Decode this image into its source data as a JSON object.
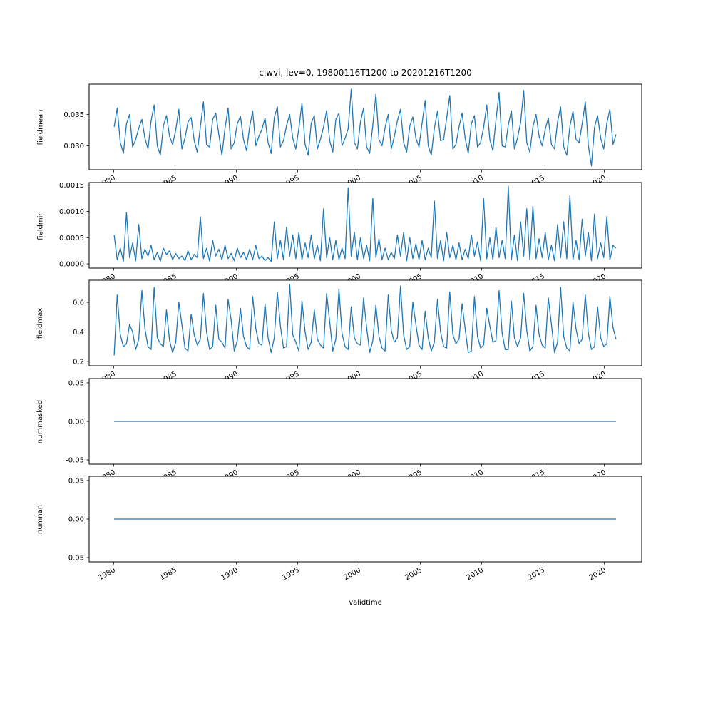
{
  "title": "clwvi, lev=0, 19800116T1200 to 20201216T1200",
  "xlabel": "validtime",
  "line_color": "#1f77b4",
  "xlim": [
    1978.0,
    2023.05
  ],
  "x_ticks": [
    1980,
    1985,
    1990,
    1995,
    2000,
    2005,
    2010,
    2015,
    2020
  ],
  "chart_data": [
    {
      "type": "line",
      "ylabel": "fieldmean",
      "ylim": [
        0.0262,
        0.0398
      ],
      "yticks": [
        0.03,
        0.035
      ],
      "ytick_labels": [
        "0.030",
        "0.035"
      ],
      "x_start": 1980.04,
      "x_end": 2020.96,
      "values": [
        0.033,
        0.036,
        0.0305,
        0.0288,
        0.0335,
        0.035,
        0.0298,
        0.031,
        0.0328,
        0.0342,
        0.0312,
        0.0295,
        0.034,
        0.0365,
        0.03,
        0.0285,
        0.0332,
        0.0348,
        0.0315,
        0.0302,
        0.0325,
        0.0358,
        0.0295,
        0.0312,
        0.0338,
        0.0345,
        0.0308,
        0.029,
        0.033,
        0.037,
        0.0302,
        0.0298,
        0.0342,
        0.0352,
        0.0318,
        0.0285,
        0.0328,
        0.036,
        0.0295,
        0.0305,
        0.0335,
        0.0347,
        0.031,
        0.0292,
        0.033,
        0.0355,
        0.03,
        0.0315,
        0.0326,
        0.0344,
        0.0305,
        0.0288,
        0.0345,
        0.0362,
        0.0298,
        0.0308,
        0.0332,
        0.035,
        0.0312,
        0.0295,
        0.0328,
        0.0368,
        0.0302,
        0.0285,
        0.0336,
        0.0348,
        0.0295,
        0.031,
        0.033,
        0.0356,
        0.0308,
        0.029,
        0.0342,
        0.0352,
        0.03,
        0.0312,
        0.0327,
        0.039,
        0.0305,
        0.0295,
        0.0338,
        0.036,
        0.0298,
        0.0288,
        0.0333,
        0.0382,
        0.031,
        0.03,
        0.0329,
        0.035,
        0.0295,
        0.0315,
        0.034,
        0.0358,
        0.0305,
        0.029,
        0.0331,
        0.0346,
        0.0312,
        0.0298,
        0.0336,
        0.0372,
        0.03,
        0.0285,
        0.0328,
        0.0355,
        0.0308,
        0.031,
        0.0344,
        0.038,
        0.0295,
        0.0302,
        0.033,
        0.0352,
        0.0312,
        0.0288,
        0.0335,
        0.0348,
        0.0298,
        0.0305,
        0.0329,
        0.0365,
        0.031,
        0.0292,
        0.0341,
        0.0385,
        0.03,
        0.0298,
        0.0333,
        0.0356,
        0.0295,
        0.0312,
        0.0337,
        0.0388,
        0.0305,
        0.029,
        0.033,
        0.035,
        0.0315,
        0.03,
        0.0326,
        0.0344,
        0.0302,
        0.0295,
        0.0338,
        0.0362,
        0.0298,
        0.0285,
        0.0331,
        0.0355,
        0.031,
        0.0305,
        0.0335,
        0.037,
        0.03,
        0.0268,
        0.0329,
        0.0348,
        0.0312,
        0.0295,
        0.0336,
        0.0358,
        0.0302,
        0.0318
      ]
    },
    {
      "type": "line",
      "ylabel": "fieldmin",
      "ylim": [
        -8e-05,
        0.00155
      ],
      "yticks": [
        0.0,
        0.0005,
        0.001,
        0.0015
      ],
      "ytick_labels": [
        "0.0000",
        "0.0005",
        "0.0010",
        "0.0015"
      ],
      "x_start": 1980.04,
      "x_end": 2020.96,
      "values": [
        0.00055,
        8e-05,
        0.0003,
        5e-05,
        0.00098,
        0.00012,
        0.0004,
        6e-05,
        0.00075,
        0.0001,
        0.00028,
        0.00015,
        0.00035,
        8e-05,
        0.00022,
        5e-05,
        0.0003,
        0.00018,
        0.00025,
        8e-05,
        0.0002,
        0.0001,
        0.00015,
        6e-05,
        0.00025,
        8e-05,
        0.00018,
        0.00012,
        0.0009,
        0.0001,
        0.0003,
        5e-05,
        0.00045,
        0.00015,
        0.00028,
        8e-05,
        0.00035,
        0.0001,
        0.0002,
        6e-05,
        0.0003,
        0.00012,
        0.00022,
        8e-05,
        0.00028,
        8e-05,
        0.00035,
        0.0001,
        0.00015,
        6e-05,
        0.00012,
        5e-05,
        0.0008,
        0.0001,
        0.00045,
        8e-05,
        0.0007,
        0.00015,
        0.00055,
        0.0001,
        0.0006,
        8e-05,
        0.0004,
        0.00012,
        0.00055,
        0.0001,
        0.00035,
        6e-05,
        0.00105,
        0.00012,
        0.0005,
        8e-05,
        0.00045,
        8e-05,
        0.0003,
        0.0001,
        0.00145,
        0.00015,
        0.0006,
        8e-05,
        0.0005,
        0.0001,
        0.00035,
        6e-05,
        0.00125,
        0.00012,
        0.00048,
        8e-05,
        0.0003,
        8e-05,
        0.00022,
        0.0001,
        0.00055,
        0.00015,
        0.0006,
        6e-05,
        0.0005,
        0.0001,
        0.00038,
        8e-05,
        0.00045,
        8e-05,
        0.0003,
        0.00012,
        0.0012,
        0.0001,
        0.00045,
        6e-05,
        0.0006,
        0.00012,
        0.00035,
        8e-05,
        0.0004,
        8e-05,
        0.00028,
        0.0001,
        0.00055,
        0.00015,
        0.00042,
        6e-05,
        0.00125,
        0.0001,
        0.0005,
        8e-05,
        0.0007,
        0.00012,
        0.00045,
        0.0001,
        0.00148,
        8e-05,
        0.00055,
        6e-05,
        0.0008,
        0.00015,
        0.00105,
        8e-05,
        0.0011,
        0.0001,
        0.00048,
        0.00012,
        0.0006,
        8e-05,
        0.00035,
        6e-05,
        0.00075,
        0.00012,
        0.0008,
        0.0001,
        0.0013,
        8e-05,
        0.00045,
        8e-05,
        0.00085,
        0.00015,
        0.0006,
        6e-05,
        0.00095,
        0.0001,
        0.0004,
        0.00012,
        0.0009,
        8e-05,
        0.00035,
        0.0003
      ]
    },
    {
      "type": "line",
      "ylabel": "fieldmax",
      "ylim": [
        0.17,
        0.75
      ],
      "yticks": [
        0.2,
        0.4,
        0.6
      ],
      "ytick_labels": [
        "0.2",
        "0.4",
        "0.6"
      ],
      "x_start": 1980.04,
      "x_end": 2020.96,
      "values": [
        0.24,
        0.65,
        0.38,
        0.3,
        0.32,
        0.45,
        0.4,
        0.28,
        0.35,
        0.68,
        0.42,
        0.3,
        0.28,
        0.7,
        0.36,
        0.32,
        0.3,
        0.55,
        0.34,
        0.26,
        0.33,
        0.6,
        0.45,
        0.29,
        0.27,
        0.52,
        0.38,
        0.31,
        0.35,
        0.66,
        0.4,
        0.28,
        0.3,
        0.58,
        0.35,
        0.33,
        0.29,
        0.62,
        0.48,
        0.27,
        0.34,
        0.56,
        0.37,
        0.3,
        0.28,
        0.64,
        0.42,
        0.32,
        0.31,
        0.59,
        0.36,
        0.26,
        0.36,
        0.67,
        0.44,
        0.29,
        0.3,
        0.72,
        0.38,
        0.33,
        0.27,
        0.61,
        0.4,
        0.28,
        0.33,
        0.55,
        0.35,
        0.31,
        0.29,
        0.66,
        0.47,
        0.27,
        0.35,
        0.69,
        0.39,
        0.3,
        0.28,
        0.57,
        0.36,
        0.32,
        0.31,
        0.63,
        0.43,
        0.26,
        0.34,
        0.58,
        0.37,
        0.29,
        0.27,
        0.65,
        0.41,
        0.33,
        0.36,
        0.71,
        0.38,
        0.28,
        0.3,
        0.6,
        0.45,
        0.31,
        0.28,
        0.54,
        0.36,
        0.27,
        0.33,
        0.62,
        0.4,
        0.3,
        0.29,
        0.67,
        0.38,
        0.32,
        0.35,
        0.59,
        0.42,
        0.26,
        0.27,
        0.64,
        0.37,
        0.29,
        0.31,
        0.56,
        0.44,
        0.33,
        0.34,
        0.68,
        0.39,
        0.28,
        0.28,
        0.61,
        0.36,
        0.3,
        0.36,
        0.66,
        0.41,
        0.27,
        0.3,
        0.58,
        0.38,
        0.31,
        0.29,
        0.63,
        0.45,
        0.26,
        0.33,
        0.7,
        0.37,
        0.29,
        0.27,
        0.6,
        0.42,
        0.32,
        0.35,
        0.65,
        0.39,
        0.28,
        0.3,
        0.57,
        0.36,
        0.3,
        0.32,
        0.64,
        0.43,
        0.35
      ]
    },
    {
      "type": "line",
      "ylabel": "nummasked",
      "ylim": [
        -0.0555,
        0.0555
      ],
      "yticks": [
        -0.05,
        0.0,
        0.05
      ],
      "ytick_labels": [
        "-0.05",
        "0.00",
        "0.05"
      ],
      "x_start": 1980.04,
      "x_end": 2020.96,
      "constant": 0.0
    },
    {
      "type": "line",
      "ylabel": "numnan",
      "ylim": [
        -0.0555,
        0.0555
      ],
      "yticks": [
        -0.05,
        0.0,
        0.05
      ],
      "ytick_labels": [
        "-0.05",
        "0.00",
        "0.05"
      ],
      "x_start": 1980.04,
      "x_end": 2020.96,
      "constant": 0.0
    }
  ]
}
